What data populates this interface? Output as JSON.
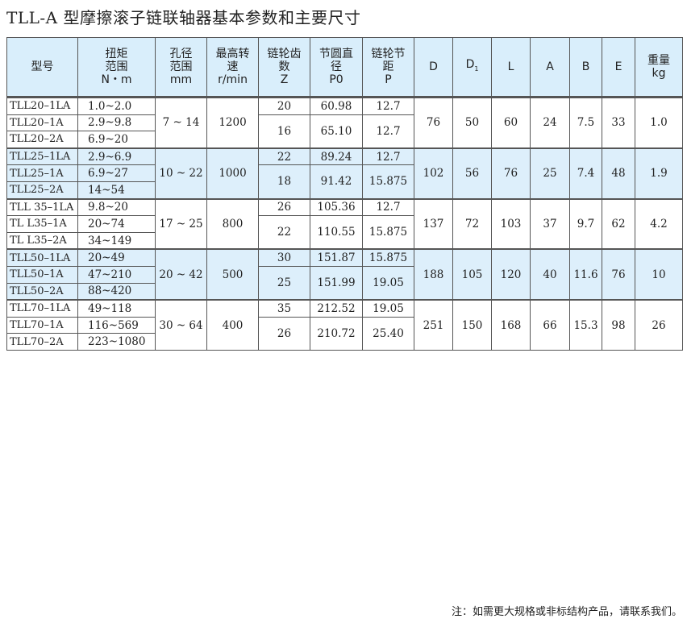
{
  "title": "TLL-A 型摩擦滚子链联轴器基本参数和主要尺寸",
  "headers": [
    "型号",
    "扭矩\n范围\nN・m",
    "孔径\n范围\nmm",
    "最高转\n速\nr/min",
    "链轮齿\n数\nZ",
    "节圆直\n径\nP0",
    "链轮节\n距\nP",
    "D",
    "D1",
    "L",
    "A",
    "B",
    "E",
    "重量\nkg"
  ],
  "groups": [
    {
      "models": [
        {
          "model": "TLL20–1LA",
          "torque": "1.0~2.0"
        },
        {
          "model": "TLL20–1A",
          "torque": "2.9~9.8"
        },
        {
          "model": "TLL20–2A",
          "torque": "6.9~20"
        }
      ],
      "bore": "7 ~ 14",
      "speed": "1200",
      "sprockets": [
        {
          "z": "20",
          "p0": "60.98",
          "p": "12.7"
        },
        {
          "z": "16",
          "p0": "65.10",
          "p": "12.7"
        }
      ],
      "D": "76",
      "D1": "50",
      "L": "60",
      "A": "24",
      "B": "7.5",
      "E": "33",
      "kg": "1.0"
    },
    {
      "models": [
        {
          "model": "TLL25–1LA",
          "torque": "2.9~6.9"
        },
        {
          "model": "TLL25–1A",
          "torque": "6.9~27"
        },
        {
          "model": "TLL25–2A",
          "torque": "14~54"
        }
      ],
      "bore": "10 ~ 22",
      "speed": "1000",
      "sprockets": [
        {
          "z": "22",
          "p0": "89.24",
          "p": "12.7"
        },
        {
          "z": "18",
          "p0": "91.42",
          "p": "15.875"
        }
      ],
      "D": "102",
      "D1": "56",
      "L": "76",
      "A": "25",
      "B": "7.4",
      "E": "48",
      "kg": "1.9"
    },
    {
      "models": [
        {
          "model": "TLL 35–1LA",
          "torque": "9.8~20"
        },
        {
          "model": "TL L35–1A",
          "torque": "20~74"
        },
        {
          "model": "TL L35–2A",
          "torque": "34~149"
        }
      ],
      "bore": "17 ~ 25",
      "speed": "800",
      "sprockets": [
        {
          "z": "26",
          "p0": "105.36",
          "p": "12.7"
        },
        {
          "z": "22",
          "p0": "110.55",
          "p": "15.875"
        }
      ],
      "D": "137",
      "D1": "72",
      "L": "103",
      "A": "37",
      "B": "9.7",
      "E": "62",
      "kg": "4.2"
    },
    {
      "models": [
        {
          "model": "TLL50–1LA",
          "torque": "20~49"
        },
        {
          "model": "TLL50–1A",
          "torque": "47~210"
        },
        {
          "model": "TLL50–2A",
          "torque": "88~420"
        }
      ],
      "bore": "20 ~ 42",
      "speed": "500",
      "sprockets": [
        {
          "z": "30",
          "p0": "151.87",
          "p": "15.875"
        },
        {
          "z": "25",
          "p0": "151.99",
          "p": "19.05"
        }
      ],
      "D": "188",
      "D1": "105",
      "L": "120",
      "A": "40",
      "B": "11.6",
      "E": "76",
      "kg": "10"
    },
    {
      "models": [
        {
          "model": "TLL70–1LA",
          "torque": "49~118"
        },
        {
          "model": "TLL70–1A",
          "torque": "116~569"
        },
        {
          "model": "TLL70–2A",
          "torque": "223~1080"
        }
      ],
      "bore": "30 ~ 64",
      "speed": "400",
      "sprockets": [
        {
          "z": "35",
          "p0": "212.52",
          "p": "19.05"
        },
        {
          "z": "26",
          "p0": "210.72",
          "p": "25.40"
        }
      ],
      "D": "251",
      "D1": "150",
      "L": "168",
      "A": "66",
      "B": "15.3",
      "E": "98",
      "kg": "26"
    }
  ],
  "note": "注：如需更大规格或非标结构产品，请联系我们。",
  "colors": {
    "header_bg": "#d9eefb",
    "alt_row_bg": "#ddeffb"
  }
}
